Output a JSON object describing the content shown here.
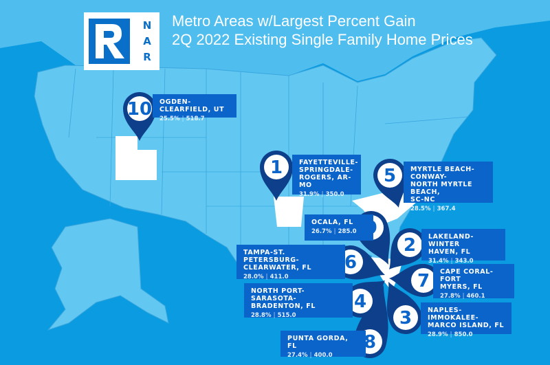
{
  "header": {
    "logo_text": "NAR",
    "logo_letters": [
      "N",
      "A",
      "R"
    ],
    "title_line1": "Metro Areas w/Largest Percent Gain",
    "title_line2": "2Q 2022 Existing Single Family Home Prices"
  },
  "colors": {
    "background": "#0a9be0",
    "land": "#62c8f2",
    "highlight_state": "#ffffff",
    "label_box": "#0a64c9",
    "pin": "#0d3f8a"
  },
  "metros": [
    {
      "rank": "1",
      "name": "FAYETTEVILLE-\nSPRINGDALE-\nROGERS, AR-MO",
      "pct": "31.9%",
      "price": "350.0"
    },
    {
      "rank": "2",
      "name": "LAKELAND-WINTER\nHAVEN, FL",
      "pct": "31.4%",
      "price": "343.0"
    },
    {
      "rank": "3",
      "name": "NAPLES-IMMOKALEE-\nMARCO ISLAND, FL",
      "pct": "28.9%",
      "price": "850.0"
    },
    {
      "rank": "4",
      "name": "NORTH PORT-SARASOTA-\nBRADENTON, FL",
      "pct": "28.8%",
      "price": "515.0"
    },
    {
      "rank": "5",
      "name": "MYRTLE BEACH-CONWAY-\nNORTH MYRTLE BEACH,\nSC-NC",
      "pct": "28.5%",
      "price": "367.4"
    },
    {
      "rank": "6",
      "name": "TAMPA-ST. PETERSBURG-\nCLEARWATER, FL",
      "pct": "28.0%",
      "price": "411.0"
    },
    {
      "rank": "7",
      "name": "CAPE CORAL-FORT\nMYERS, FL",
      "pct": "27.8%",
      "price": "460.1"
    },
    {
      "rank": "8",
      "name": "PUNTA GORDA, FL",
      "pct": "27.4%",
      "price": "400.0"
    },
    {
      "rank": "9",
      "name": "OCALA, FL",
      "pct": "26.7%",
      "price": "285.0"
    },
    {
      "rank": "10",
      "name": "OGDEN-CLEARFIELD, UT",
      "pct": "25.5%",
      "price": "518.7"
    }
  ],
  "stat_separator": "|"
}
